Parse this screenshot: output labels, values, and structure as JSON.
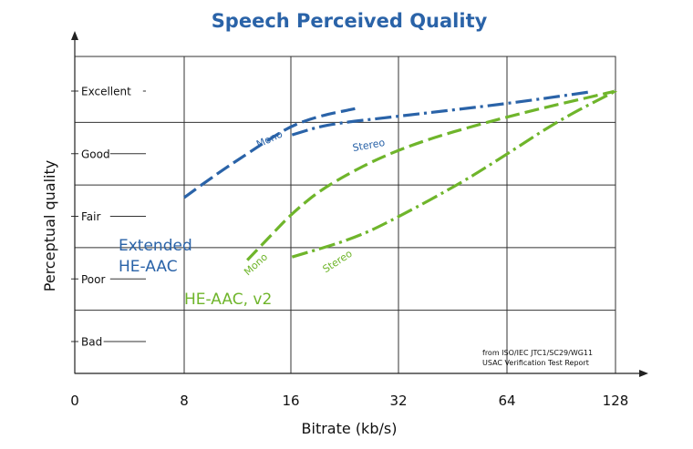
{
  "chart_data": {
    "type": "line",
    "title": "Speech Perceived Quality",
    "xlabel": "Bitrate (kb/s)",
    "ylabel": "Perceptual quality",
    "x_ticks": [
      "0",
      "8",
      "16",
      "32",
      "64",
      "128"
    ],
    "y_ticks": [
      "Bad",
      "Poor",
      "Fair",
      "Good",
      "Excellent"
    ],
    "ylim": [
      0.7,
      5.0
    ],
    "y_tick_values": [
      1,
      2,
      3,
      4,
      5
    ],
    "grid": true,
    "series": [
      {
        "name": "Mono",
        "group": "Extended HE-AAC",
        "color": "#2a63a8",
        "dash": "dashed",
        "points": [
          [
            8,
            3.3
          ],
          [
            10,
            3.7
          ],
          [
            12,
            4.0
          ],
          [
            14,
            4.25
          ],
          [
            16,
            4.45
          ],
          [
            19,
            4.6
          ],
          [
            24,
            4.72
          ]
        ]
      },
      {
        "name": "Stereo",
        "group": "Extended HE-AAC",
        "color": "#2a63a8",
        "dash": "dashdot",
        "points": [
          [
            16,
            4.3
          ],
          [
            20,
            4.47
          ],
          [
            32,
            4.6
          ],
          [
            64,
            4.8
          ],
          [
            110,
            4.99
          ]
        ]
      },
      {
        "name": "Mono",
        "group": "HE-AAC, v2",
        "color": "#6fb52b",
        "dash": "dashed",
        "points": [
          [
            12,
            2.3
          ],
          [
            14,
            2.7
          ],
          [
            16,
            3.05
          ],
          [
            20,
            3.5
          ],
          [
            32,
            4.1
          ],
          [
            64,
            4.6
          ],
          [
            128,
            5.0
          ]
        ]
      },
      {
        "name": "Stereo",
        "group": "HE-AAC, v2",
        "color": "#6fb52b",
        "dash": "dashdot",
        "points": [
          [
            16,
            2.35
          ],
          [
            24,
            2.65
          ],
          [
            32,
            3.0
          ],
          [
            48,
            3.55
          ],
          [
            64,
            4.0
          ],
          [
            90,
            4.55
          ],
          [
            128,
            5.0
          ]
        ]
      }
    ],
    "annotations": {
      "group_blue": [
        "Extended",
        "HE-AAC"
      ],
      "group_green": "HE-AAC, v2",
      "mono": "Mono",
      "stereo": "Stereo",
      "source": [
        "from ISO/IEC JTC1/SC29/WG11",
        "USAC Verification Test Report"
      ]
    }
  }
}
